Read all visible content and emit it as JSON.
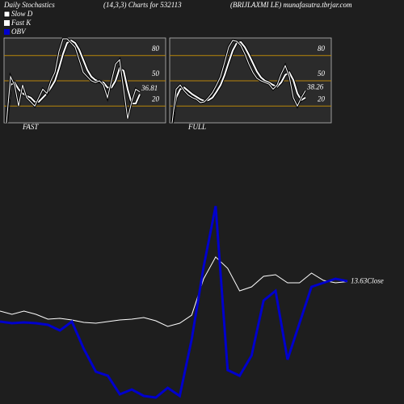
{
  "header": {
    "title": "Daily Stochastics",
    "subtitle": "(14,3,3) Charts for 532113",
    "source": "(BRIJLAXMI LE) munafasutra.tbrjar.com"
  },
  "chart_data": [
    {
      "type": "line",
      "title": "FAST",
      "ylim": [
        0,
        100
      ],
      "yticks": [
        80,
        50,
        20
      ],
      "series": [
        {
          "name": "Slow D",
          "color": "#ffffff",
          "values": [
            0,
            45,
            48,
            40,
            35,
            32,
            30,
            25,
            25,
            30,
            35,
            42,
            50,
            65,
            82,
            95,
            98,
            95,
            87,
            75,
            63,
            55,
            51,
            49,
            48,
            42,
            42,
            50,
            65,
            62,
            40,
            23,
            23,
            34
          ]
        },
        {
          "name": "Fast K",
          "color": "#ffffff",
          "values": [
            0,
            55,
            45,
            20,
            45,
            30,
            25,
            20,
            30,
            40,
            35,
            50,
            60,
            85,
            100,
            100,
            95,
            90,
            75,
            60,
            55,
            50,
            48,
            50,
            45,
            30,
            50,
            70,
            75,
            40,
            5,
            25,
            40,
            36.81
          ]
        }
      ]
    },
    {
      "type": "line",
      "title": "FULL",
      "ylim": [
        0,
        100
      ],
      "yticks": [
        80,
        50,
        20
      ],
      "series": [
        {
          "color": "#ffffff",
          "values": [
            0,
            30,
            40,
            42,
            38,
            34,
            31,
            28,
            26,
            27,
            30,
            37,
            45,
            57,
            72,
            86,
            95,
            96,
            90,
            81,
            71,
            61,
            54,
            50,
            48,
            45,
            43,
            48,
            57,
            60,
            51,
            35,
            27,
            30
          ]
        },
        {
          "color": "#ffffff",
          "values": [
            0,
            40,
            45,
            38,
            33,
            30,
            28,
            24,
            25,
            30,
            36,
            45,
            55,
            72,
            90,
            98,
            97,
            92,
            82,
            70,
            60,
            53,
            50,
            48,
            46,
            40,
            45,
            58,
            68,
            55,
            30,
            20,
            30,
            38.26
          ]
        }
      ]
    },
    {
      "type": "line",
      "end_label": "Close",
      "ylim": [
        10.6,
        17.4
      ],
      "y2lim": [
        0,
        340
      ],
      "series": [
        {
          "color": "#ffffff",
          "values": [
            12.9,
            12.82,
            12.9,
            12.82,
            12.7,
            12.72,
            12.68,
            12.62,
            12.6,
            12.64,
            12.68,
            12.7,
            12.74,
            12.66,
            12.52,
            12.6,
            12.8,
            13.7,
            14.24,
            13.96,
            13.4,
            13.5,
            13.76,
            13.8,
            13.6,
            13.6,
            13.84,
            13.66,
            13.6,
            13.63
          ]
        },
        {
          "name": "OBV",
          "color": "#0000cc",
          "axis": "y2",
          "values": [
            102,
            100,
            101,
            100,
            98,
            91,
            102,
            68,
            40,
            35,
            12,
            18,
            10,
            8,
            20,
            10,
            80,
            170,
            245,
            42,
            35,
            60,
            128,
            140,
            55,
            100,
            145,
            150,
            155,
            152
          ]
        }
      ]
    }
  ]
}
